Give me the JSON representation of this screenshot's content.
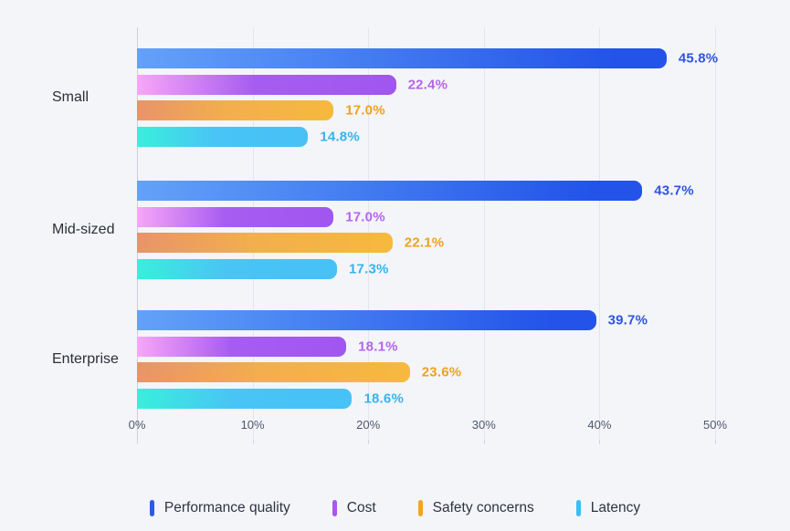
{
  "colors": {
    "background": "#F3F5F9",
    "gridline": "#E3E6ED",
    "axis_line": "#CBD0DA",
    "tick_label": "#4E586B",
    "category_label": "#2B2F38"
  },
  "chart_data": {
    "type": "bar",
    "orientation": "horizontal",
    "grid": true,
    "legend_position": "bottom",
    "xlim": [
      0,
      50
    ],
    "x_ticks": [
      "0%",
      "10%",
      "20%",
      "30%",
      "40%",
      "50%"
    ],
    "categories": [
      "Small",
      "Mid-sized",
      "Enterprise"
    ],
    "series": [
      {
        "name": "Performance quality",
        "values": [
          45.8,
          43.7,
          39.7
        ],
        "labels": [
          "45.8%",
          "43.7%",
          "39.7%"
        ],
        "label_color": "#3154DF",
        "legend_color": "#2B5BE4",
        "gradient_start": "#63A2F8",
        "gradient_mid": "",
        "gradient_end": "#2353E9"
      },
      {
        "name": "Cost",
        "values": [
          22.4,
          17.0,
          18.1
        ],
        "labels": [
          "22.4%",
          "17.0%",
          "18.1%"
        ],
        "label_color": "#B763EC",
        "legend_color": "#A757F2",
        "gradient_start": "#F8A6F7",
        "gradient_mid": "#A75CF1",
        "gradient_end": "#A156F0"
      },
      {
        "name": "Safety concerns",
        "values": [
          17.0,
          22.1,
          23.6
        ],
        "labels": [
          "17.0%",
          "22.1%",
          "23.6%"
        ],
        "label_color": "#EEA21F",
        "legend_color": "#F2A61F",
        "gradient_start": "#E89469",
        "gradient_mid": "#F3AE4E",
        "gradient_end": "#F6B93E"
      },
      {
        "name": "Latency",
        "values": [
          14.8,
          17.3,
          18.6
        ],
        "labels": [
          "14.8%",
          "17.3%",
          "18.6%"
        ],
        "label_color": "#35B4EC",
        "legend_color": "#38BDF8",
        "gradient_start": "#38EFDC",
        "gradient_mid": "#49C4F5",
        "gradient_end": "#47C1F6"
      }
    ]
  }
}
